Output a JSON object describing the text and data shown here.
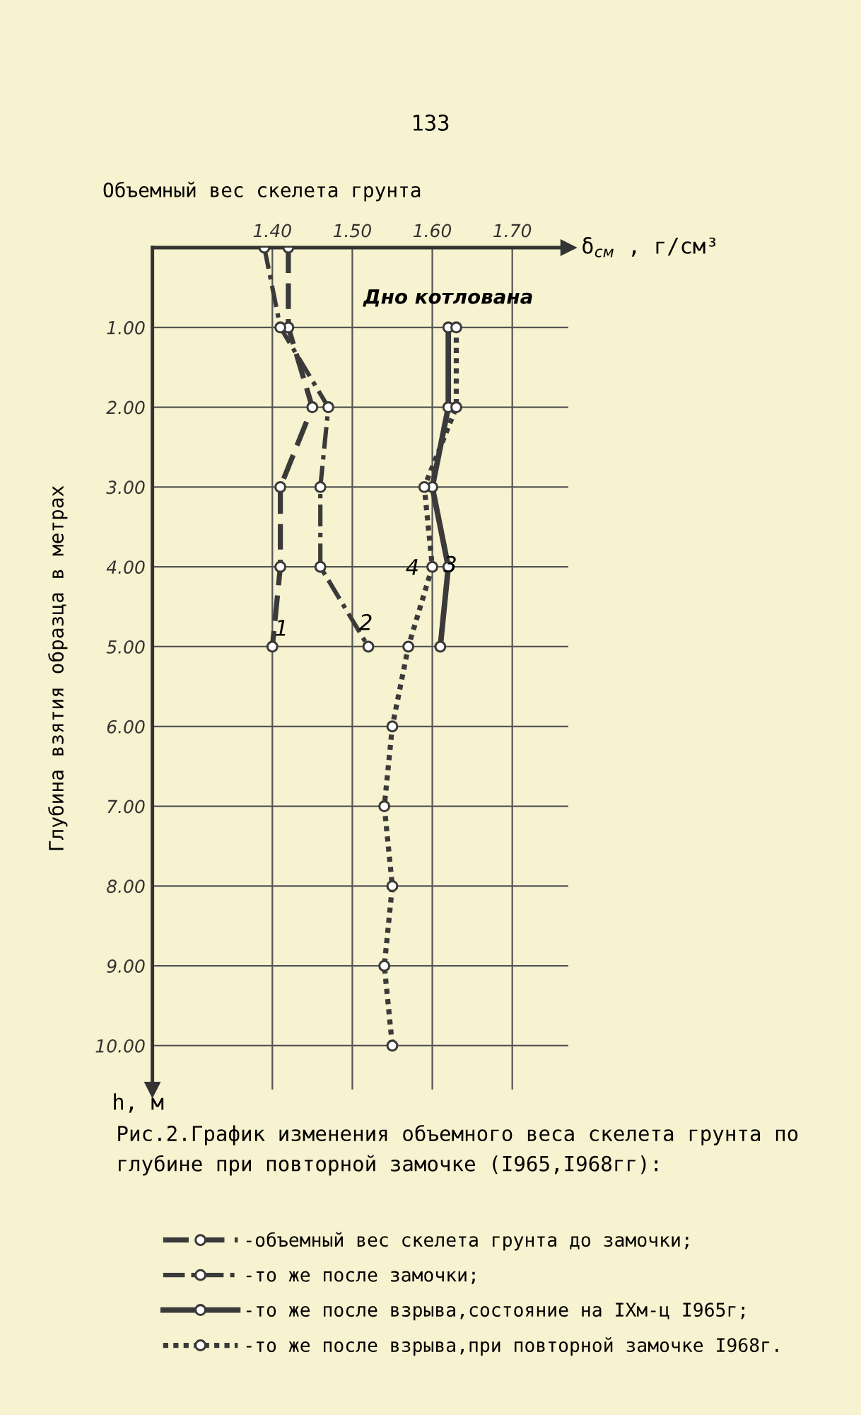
{
  "chart_data": {
    "type": "line",
    "title": "Рис.2.График изменения объемного веса скелета грунта по глубине при повторной замочке (I965,I968гг):",
    "xlabel": "Объемный вес скелета грунта",
    "ylabel": "Глубина взятия образца в метрах",
    "series": [
      {
        "name": "-объемный вес скелета грунта до замочки;",
        "color": "#3a3a3a",
        "line_style": "dashed",
        "x": [
          1.42,
          1.42,
          1.45,
          1.41,
          1.41,
          1.4
        ],
        "values": [
          0,
          1,
          2,
          3,
          4,
          5
        ]
      },
      {
        "name": "-то же после замочки;",
        "color": "#3a3a3a",
        "line_style": "dashdot",
        "x": [
          1.39,
          1.41,
          1.47,
          1.46,
          1.46,
          1.52
        ],
        "values": [
          0,
          1,
          2,
          3,
          4,
          5
        ]
      },
      {
        "name": "-то же после взрыва,состояние на IXм-ц I965г;",
        "color": "#3a3a3a",
        "line_style": "solid",
        "x": [
          1.62,
          1.62,
          1.6,
          1.62,
          1.61
        ],
        "values": [
          1,
          2,
          3,
          4,
          5
        ]
      },
      {
        "name": "-то же после взрыва,при повторной замочке I968г.",
        "color": "#3a3a3a",
        "line_style": "dotted",
        "x": [
          1.63,
          1.63,
          1.59,
          1.6,
          1.57,
          1.55,
          1.54,
          1.55,
          1.54,
          1.55
        ],
        "values": [
          1,
          2,
          3,
          4,
          5,
          6,
          7,
          8,
          9,
          10
        ]
      }
    ],
    "xlim": [
      1.25,
      1.77
    ],
    "xticks": [
      {
        "value": 1.4,
        "label": "1.40"
      },
      {
        "value": 1.5,
        "label": "1.50"
      },
      {
        "value": 1.6,
        "label": "1.60"
      },
      {
        "value": 1.7,
        "label": "1.70"
      }
    ],
    "ylim": [
      10.55,
      0
    ],
    "yticks": [
      {
        "value": 1,
        "label": "1.00"
      },
      {
        "value": 2,
        "label": "2.00"
      },
      {
        "value": 3,
        "label": "3.00"
      },
      {
        "value": 4,
        "label": "4.00"
      },
      {
        "value": 5,
        "label": "5.00"
      },
      {
        "value": 6,
        "label": "6.00"
      },
      {
        "value": 7,
        "label": "7.00"
      },
      {
        "value": 8,
        "label": "8.00"
      },
      {
        "value": 9,
        "label": "9.00"
      },
      {
        "value": 10,
        "label": "10.00"
      }
    ],
    "grid": true,
    "marker": "circle",
    "legend": "bottom",
    "annotations": [
      "133",
      "δ$_{см}$ , г/см³",
      "h, м",
      "1",
      "2",
      "3",
      "4",
      {
        "text": "Дно котлована",
        "x": 1.62,
        "y": 1.0
      }
    ]
  }
}
